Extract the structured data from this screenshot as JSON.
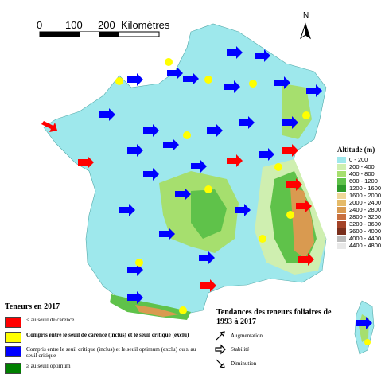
{
  "scale": {
    "labels": [
      "0",
      "100",
      "200"
    ],
    "unit": "Kilomètres"
  },
  "north_arrow": "N",
  "altitude_legend": {
    "title": "Altitude (m)",
    "classes": [
      {
        "label": "0 - 200",
        "color": "#9ee8ec"
      },
      {
        "label": "200 - 400",
        "color": "#cfefb0"
      },
      {
        "label": "400 - 800",
        "color": "#a6df6e"
      },
      {
        "label": "600 - 1200",
        "color": "#5fc24a"
      },
      {
        "label": "1200 - 1600",
        "color": "#2d9a2a"
      },
      {
        "label": "1600 - 2000",
        "color": "#eed79a"
      },
      {
        "label": "2000 - 2400",
        "color": "#e5ba68"
      },
      {
        "label": "2400 - 2800",
        "color": "#d99a50"
      },
      {
        "label": "2800 - 3200",
        "color": "#c8703f"
      },
      {
        "label": "3200 - 3600",
        "color": "#a44328"
      },
      {
        "label": "3600 - 4000",
        "color": "#7a2f1d"
      },
      {
        "label": "4000 - 4400",
        "color": "#bdbdbd"
      },
      {
        "label": "4400 - 4800",
        "color": "#e8e8e8"
      }
    ]
  },
  "teneurs_legend": {
    "title": "Teneurs en 2017",
    "items": [
      {
        "label": "< au seuil de carence",
        "color": "#ff0000"
      },
      {
        "label": "Compris entre le seuil de carence (inclus) et le seuil critique (exclu)",
        "color": "#ffff00"
      },
      {
        "label": "Compris entre le seuil critique (inclus) et le seuil optimum (exclu) ou ≥ au seuil critique",
        "color": "#0000ff"
      },
      {
        "label": "≥ au seuil optimum",
        "color": "#008000"
      }
    ]
  },
  "tendances_legend": {
    "title": "Tendances des teneurs foliaires de 1993 à 2017",
    "items": [
      {
        "label": "Augmentation",
        "direction": "up"
      },
      {
        "label": "Stabilité",
        "direction": "right"
      },
      {
        "label": "Diminution",
        "direction": "down"
      }
    ]
  },
  "colors": {
    "sea": "#ffffff",
    "lowland": "#9ee8ec"
  }
}
